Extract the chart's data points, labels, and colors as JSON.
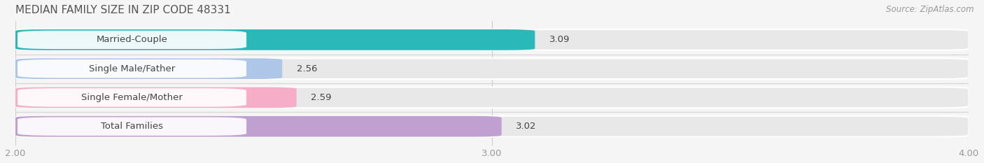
{
  "title": "MEDIAN FAMILY SIZE IN ZIP CODE 48331",
  "source": "Source: ZipAtlas.com",
  "categories": [
    "Married-Couple",
    "Single Male/Father",
    "Single Female/Mother",
    "Total Families"
  ],
  "values": [
    3.09,
    2.56,
    2.59,
    3.02
  ],
  "bar_colors": [
    "#2ab8b8",
    "#aec6e8",
    "#f5adc8",
    "#c0a0d0"
  ],
  "bar_bg_color": "#e8e8e8",
  "xlim": [
    2.0,
    4.0
  ],
  "xticks": [
    2.0,
    3.0,
    4.0
  ],
  "xtick_labels": [
    "2.00",
    "3.00",
    "4.00"
  ],
  "label_fontsize": 9.5,
  "value_fontsize": 9.5,
  "title_fontsize": 11,
  "source_fontsize": 8.5,
  "background_color": "#f5f5f5",
  "bar_height": 0.72,
  "label_color": "#444444",
  "title_color": "#555555",
  "source_color": "#999999",
  "tick_color": "#999999",
  "grid_color": "#cccccc",
  "sep_color": "#d8d8d8"
}
